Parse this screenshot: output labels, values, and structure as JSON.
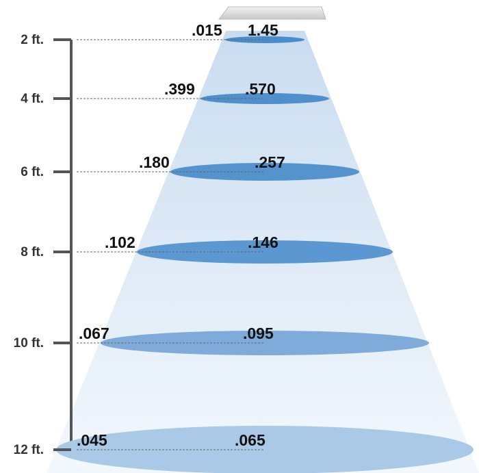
{
  "levels": [
    {
      "distance": "2 ft.",
      "left": ".015",
      "right": "1.45"
    },
    {
      "distance": "4 ft.",
      "left": ".399",
      "right": ".570"
    },
    {
      "distance": "6 ft.",
      "left": ".180",
      "right": ".257"
    },
    {
      "distance": "8 ft.",
      "left": ".102",
      "right": ".146"
    },
    {
      "distance": "10 ft.",
      "left": ".067",
      "right": ".095"
    },
    {
      "distance": "12 ft.",
      "left": ".045",
      "right": ".065"
    }
  ]
}
